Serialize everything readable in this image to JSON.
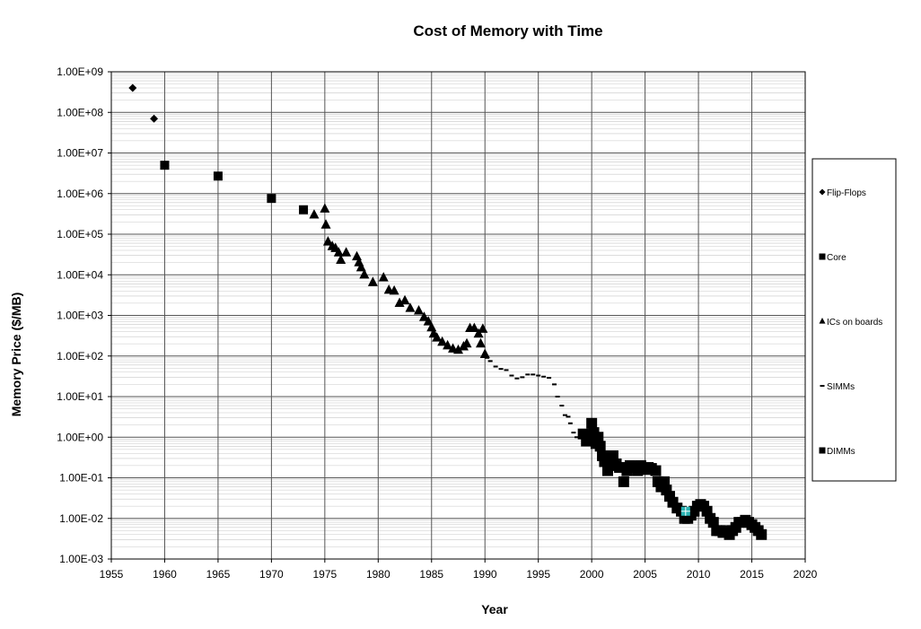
{
  "chart_data": {
    "type": "scatter",
    "title": "Cost of Memory with Time",
    "xlabel": "Year",
    "ylabel": "Memory Price ($/MB)",
    "xlim": [
      1955,
      2020
    ],
    "ylim": [
      0.001,
      1000000000
    ],
    "yscale": "log",
    "grid": true,
    "minor_grid": true,
    "legend_position": "right",
    "x_ticks": [
      "1955",
      "1960",
      "1965",
      "1970",
      "1975",
      "1980",
      "1985",
      "1990",
      "1995",
      "2000",
      "2005",
      "2010",
      "2015",
      "2020"
    ],
    "y_ticks": [
      "1.00E+09",
      "1.00E+08",
      "1.00E+07",
      "1.00E+06",
      "1.00E+05",
      "1.00E+04",
      "1.00E+03",
      "1.00E+02",
      "1.00E+01",
      "1.00E+00",
      "1.00E-01",
      "1.00E-02",
      "1.00E-03"
    ],
    "series": [
      {
        "name": "Flip-Flops",
        "marker": "diamond",
        "color": "#000000",
        "points": [
          [
            1957,
            400000000
          ],
          [
            1959,
            70000000
          ]
        ]
      },
      {
        "name": "Core",
        "marker": "square",
        "color": "#000000",
        "points": [
          [
            1960,
            5000000
          ],
          [
            1965,
            2700000
          ],
          [
            1970,
            760000
          ],
          [
            1973,
            400000
          ]
        ]
      },
      {
        "name": "ICs on boards",
        "marker": "triangle",
        "color": "#000000",
        "points": [
          [
            1974,
            300000
          ],
          [
            1975,
            420000
          ],
          [
            1975.1,
            170000
          ],
          [
            1975.3,
            65000
          ],
          [
            1975.7,
            50000
          ],
          [
            1976,
            45000
          ],
          [
            1976.3,
            35000
          ],
          [
            1976.5,
            23000
          ],
          [
            1977,
            35000
          ],
          [
            1978,
            28000
          ],
          [
            1978.2,
            20000
          ],
          [
            1978.4,
            15000
          ],
          [
            1978.7,
            10000
          ],
          [
            1979.5,
            6500
          ],
          [
            1980.5,
            8500
          ],
          [
            1981,
            4200
          ],
          [
            1981.5,
            4000
          ],
          [
            1982,
            2000
          ],
          [
            1982.5,
            2300
          ],
          [
            1983,
            1500
          ],
          [
            1983.8,
            1300
          ],
          [
            1984.3,
            900
          ],
          [
            1984.7,
            700
          ],
          [
            1985,
            500
          ],
          [
            1985.2,
            350
          ],
          [
            1985.5,
            280
          ],
          [
            1986,
            220
          ],
          [
            1986.5,
            180
          ],
          [
            1987,
            150
          ],
          [
            1987.5,
            140
          ],
          [
            1988,
            170
          ],
          [
            1988.3,
            200
          ],
          [
            1988.6,
            480
          ],
          [
            1989,
            480
          ],
          [
            1989.4,
            350
          ],
          [
            1989.6,
            200
          ],
          [
            1989.8,
            460
          ],
          [
            1990,
            110
          ]
        ]
      },
      {
        "name": "SIMMs",
        "marker": "dash",
        "color": "#000000",
        "points": [
          [
            1990.2,
            90
          ],
          [
            1990.5,
            75
          ],
          [
            1991,
            55
          ],
          [
            1991.5,
            48
          ],
          [
            1992,
            45
          ],
          [
            1992.5,
            33
          ],
          [
            1993,
            28
          ],
          [
            1993.5,
            30
          ],
          [
            1994,
            35
          ],
          [
            1994.5,
            35
          ],
          [
            1995,
            33
          ],
          [
            1995.5,
            31
          ],
          [
            1996,
            29
          ],
          [
            1996.5,
            20
          ],
          [
            1996.8,
            10
          ],
          [
            1997.2,
            6
          ],
          [
            1997.5,
            3.5
          ],
          [
            1997.8,
            3.2
          ],
          [
            1998,
            2.2
          ],
          [
            1998.3,
            1.3
          ],
          [
            1998.6,
            1.0
          ],
          [
            1999,
            1.1
          ]
        ]
      },
      {
        "name": "DIMMs",
        "marker": "square",
        "color": "#000000",
        "points": [
          [
            1999.2,
            1.2
          ],
          [
            1999.5,
            0.8
          ],
          [
            1999.8,
            1.1
          ],
          [
            2000,
            2.2
          ],
          [
            2000.2,
            1.3
          ],
          [
            2000.4,
            0.7
          ],
          [
            2000.6,
            1.0
          ],
          [
            2000.8,
            0.6
          ],
          [
            2001,
            0.35
          ],
          [
            2001.2,
            0.25
          ],
          [
            2001.5,
            0.15
          ],
          [
            2001.8,
            0.2
          ],
          [
            2002,
            0.35
          ],
          [
            2002.3,
            0.22
          ],
          [
            2002.6,
            0.18
          ],
          [
            2003,
            0.08
          ],
          [
            2003.3,
            0.15
          ],
          [
            2003.6,
            0.2
          ],
          [
            2004,
            0.18
          ],
          [
            2004.3,
            0.15
          ],
          [
            2004.6,
            0.2
          ],
          [
            2005,
            0.16
          ],
          [
            2005.3,
            0.18
          ],
          [
            2005.6,
            0.17
          ],
          [
            2006,
            0.15
          ],
          [
            2006.2,
            0.08
          ],
          [
            2006.5,
            0.06
          ],
          [
            2006.8,
            0.08
          ],
          [
            2007,
            0.05
          ],
          [
            2007.3,
            0.035
          ],
          [
            2007.6,
            0.025
          ],
          [
            2008,
            0.018
          ],
          [
            2008.4,
            0.015
          ],
          [
            2008.7,
            0.01
          ],
          [
            2009,
            0.01
          ],
          [
            2009.3,
            0.012
          ],
          [
            2009.6,
            0.015
          ],
          [
            2009.9,
            0.02
          ],
          [
            2010.2,
            0.022
          ],
          [
            2010.5,
            0.02
          ],
          [
            2010.8,
            0.015
          ],
          [
            2011.1,
            0.01
          ],
          [
            2011.4,
            0.008
          ],
          [
            2011.7,
            0.005
          ],
          [
            2012,
            0.005
          ],
          [
            2012.3,
            0.0045
          ],
          [
            2012.6,
            0.005
          ],
          [
            2012.9,
            0.004
          ],
          [
            2013.2,
            0.005
          ],
          [
            2013.5,
            0.006
          ],
          [
            2013.8,
            0.008
          ],
          [
            2014.1,
            0.008
          ],
          [
            2014.4,
            0.009
          ],
          [
            2014.7,
            0.008
          ],
          [
            2015,
            0.007
          ],
          [
            2015.3,
            0.006
          ],
          [
            2015.6,
            0.005
          ],
          [
            2015.9,
            0.004
          ]
        ]
      }
    ],
    "highlight": {
      "color": "#2ab3b3",
      "x": 2008.8,
      "y": 0.015
    }
  }
}
